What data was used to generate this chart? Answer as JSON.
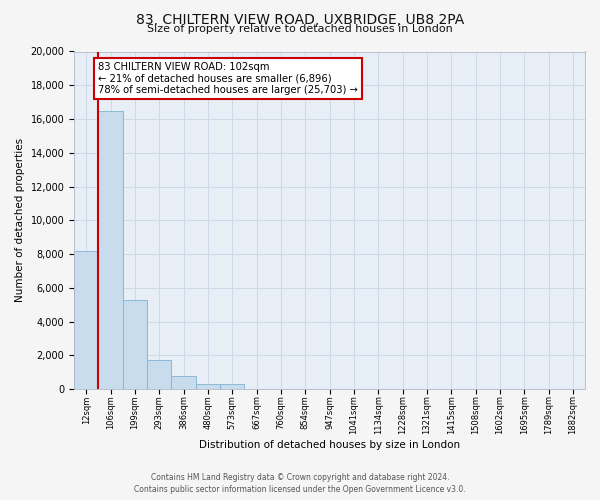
{
  "title": "83, CHILTERN VIEW ROAD, UXBRIDGE, UB8 2PA",
  "subtitle": "Size of property relative to detached houses in London",
  "xlabel": "Distribution of detached houses by size in London",
  "ylabel": "Number of detached properties",
  "bar_labels": [
    "12sqm",
    "106sqm",
    "199sqm",
    "293sqm",
    "386sqm",
    "480sqm",
    "573sqm",
    "667sqm",
    "760sqm",
    "854sqm",
    "947sqm",
    "1041sqm",
    "1134sqm",
    "1228sqm",
    "1321sqm",
    "1415sqm",
    "1508sqm",
    "1602sqm",
    "1695sqm",
    "1789sqm",
    "1882sqm"
  ],
  "bar_values": [
    8200,
    16500,
    5300,
    1750,
    800,
    280,
    280,
    0,
    0,
    0,
    0,
    0,
    0,
    0,
    0,
    0,
    0,
    0,
    0,
    0,
    0
  ],
  "bar_color": "#c9dcee",
  "bar_edge_color": "#7fb3d3",
  "property_label": "83 CHILTERN VIEW ROAD: 102sqm",
  "annotation_line1": "← 21% of detached houses are smaller (6,896)",
  "annotation_line2": "78% of semi-detached houses are larger (25,703) →",
  "annotation_box_color": "#ffffff",
  "annotation_border_color": "#cc0000",
  "vline_color": "#cc0000",
  "ylim": [
    0,
    20000
  ],
  "yticks": [
    0,
    2000,
    4000,
    6000,
    8000,
    10000,
    12000,
    14000,
    16000,
    18000,
    20000
  ],
  "grid_color": "#cdd8e8",
  "bg_color": "#e8eef6",
  "fig_bg_color": "#f5f5f5",
  "footer_line1": "Contains HM Land Registry data © Crown copyright and database right 2024.",
  "footer_line2": "Contains public sector information licensed under the Open Government Licence v3.0."
}
